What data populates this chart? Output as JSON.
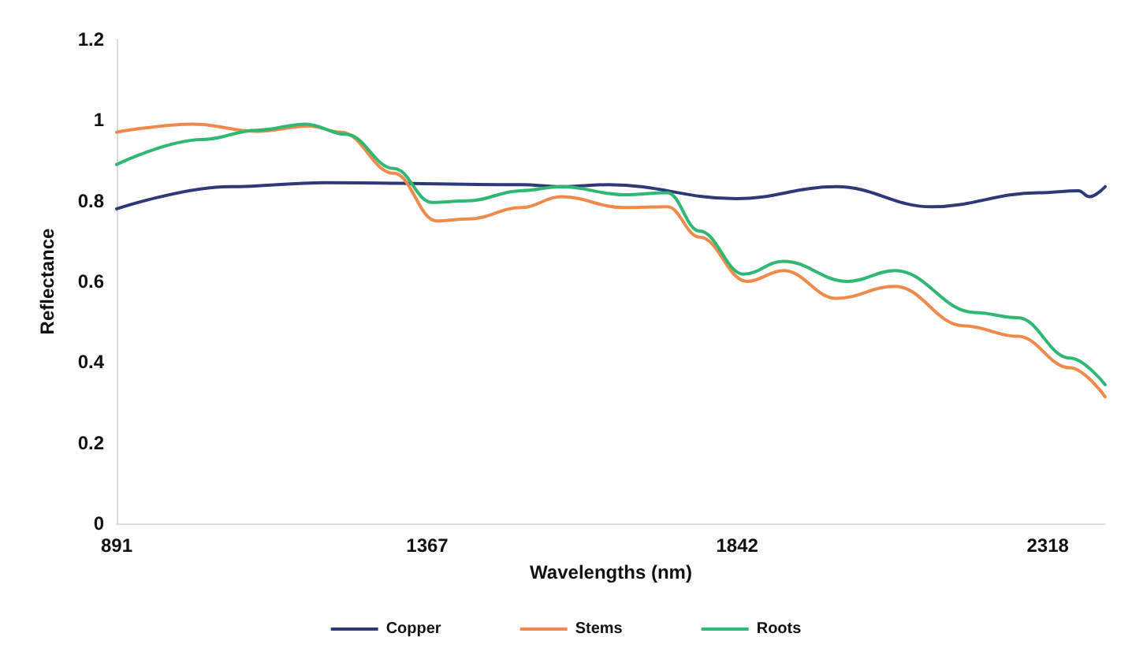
{
  "chart_data": {
    "type": "line",
    "xlabel": "Wavelengths (nm)",
    "ylabel": "Reflectance",
    "xlim": [
      891,
      2406
    ],
    "xticks": [
      891,
      1367,
      1842,
      2318
    ],
    "ylim": [
      0,
      1.2
    ],
    "yticks": [
      0,
      0.2,
      0.4,
      0.6,
      0.8,
      1,
      1.2
    ],
    "grid": false,
    "legend": "bottom",
    "marker": "none",
    "line_style": "solid",
    "series": [
      {
        "name": "Copper",
        "color": "#2e3a78",
        "x": [
          891,
          1064,
          1211,
          1511,
          1572,
          1645,
          1840,
          1994,
          2140,
          2304,
          2365,
          2382,
          2406
        ],
        "values": [
          0.78,
          0.835,
          0.845,
          0.84,
          0.835,
          0.84,
          0.805,
          0.835,
          0.785,
          0.82,
          0.825,
          0.81,
          0.835
        ]
      },
      {
        "name": "Stems",
        "color": "#f08a4b",
        "x": [
          891,
          1008,
          1106,
          1186,
          1235,
          1316,
          1381,
          1430,
          1511,
          1572,
          1669,
          1735,
          1784,
          1857,
          1913,
          1994,
          2084,
          2189,
          2272,
          2352,
          2406
        ],
        "values": [
          0.97,
          0.99,
          0.972,
          0.985,
          0.97,
          0.868,
          0.75,
          0.755,
          0.783,
          0.81,
          0.783,
          0.785,
          0.71,
          0.6,
          0.627,
          0.558,
          0.588,
          0.49,
          0.464,
          0.386,
          0.314
        ]
      },
      {
        "name": "Roots",
        "color": "#2eb872",
        "x": [
          891,
          1023,
          1106,
          1181,
          1242,
          1316,
          1374,
          1430,
          1511,
          1572,
          1669,
          1735,
          1784,
          1852,
          1913,
          2011,
          2084,
          2206,
          2272,
          2352,
          2406
        ],
        "values": [
          0.89,
          0.952,
          0.975,
          0.99,
          0.965,
          0.88,
          0.796,
          0.8,
          0.825,
          0.835,
          0.815,
          0.82,
          0.725,
          0.618,
          0.65,
          0.6,
          0.627,
          0.523,
          0.51,
          0.41,
          0.344
        ]
      }
    ]
  }
}
